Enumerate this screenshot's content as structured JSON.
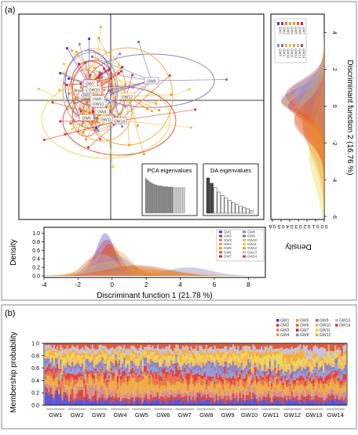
{
  "panel_a_label": "(a)",
  "panel_b_label": "(b)",
  "groups": [
    "GW1",
    "GW2",
    "GW3",
    "GW4",
    "GW5",
    "GW6",
    "GW7",
    "GW8",
    "GW9",
    "GW10",
    "GW11",
    "GW12",
    "GW13",
    "GW14"
  ],
  "group_colors": [
    "#3b3bd6",
    "#cc2e2e",
    "#d07a7a",
    "#f09a3a",
    "#e8a020",
    "#e06030",
    "#e02020",
    "#8888cc",
    "#7a70b8",
    "#f5b040",
    "#e8d040",
    "#f4a020",
    "#b8b8d8",
    "#d84020"
  ],
  "chart_data": [
    {
      "type": "scatter",
      "title": "",
      "note": "DAPC scatter of discriminant functions 1 vs 2 with group ellipses",
      "inset_labels": [
        "PCA eigenvalues",
        "DA eigenvalues"
      ],
      "pca_eigenvalues": [
        9,
        8.6,
        8.3,
        8,
        7.8,
        7.6,
        7.4,
        7.3,
        7.2,
        7.1,
        7,
        7,
        6.9,
        6.9,
        6.8,
        6.8,
        6.8,
        6.7,
        6.7,
        6.7,
        6.7,
        6.6,
        6.6,
        6.6,
        6.6,
        6.6,
        6.6,
        6.6,
        6.6,
        6.6
      ],
      "da_eigenvalues": [
        10,
        8.5,
        7.2,
        6,
        5,
        4.3,
        3.6,
        3,
        2.5,
        2,
        1.6,
        1.2,
        0.8
      ]
    },
    {
      "type": "area",
      "xlabel": "Discriminant function 1 (21.78 %)",
      "ylabel": "Density",
      "xlim": [
        -4,
        9
      ],
      "ylim": [
        0,
        1.1
      ],
      "x_ticks": [
        -4,
        -2,
        0,
        2,
        4,
        6,
        8
      ],
      "y_ticks": [
        0.0,
        0.2,
        0.4,
        0.6,
        0.8,
        1.0
      ]
    },
    {
      "type": "area",
      "xlabel": "Density",
      "ylabel": "Discriminant function 2 (16.76 %)",
      "xlim": [
        0.6,
        0
      ],
      "ylim": [
        -6,
        4.5
      ],
      "density_ticks": [
        0.6,
        0.5,
        0.4,
        0.3,
        0.2,
        0.1,
        0.0
      ],
      "df_ticks": [
        4,
        2,
        0,
        -2,
        -4,
        -6
      ]
    },
    {
      "type": "bar",
      "subtype": "stacked",
      "ylabel": "Membership probability",
      "ylim": [
        0,
        1
      ],
      "y_ticks": [
        0.0,
        0.2,
        0.4,
        0.6,
        0.8,
        1.0
      ],
      "categories": [
        "GW1",
        "GW2",
        "GW3",
        "GW4",
        "GW5",
        "GW6",
        "GW7",
        "GW8",
        "GW9",
        "GW10",
        "GW11",
        "GW12",
        "GW13",
        "GW14"
      ],
      "legend": [
        "GW1",
        "GW2",
        "GW3",
        "GW4",
        "GW5",
        "GW6",
        "GW7",
        "GW8",
        "GW9",
        "GW10",
        "GW11",
        "GW12",
        "GW13",
        "GW14"
      ],
      "legend_placement": "top-right"
    }
  ]
}
